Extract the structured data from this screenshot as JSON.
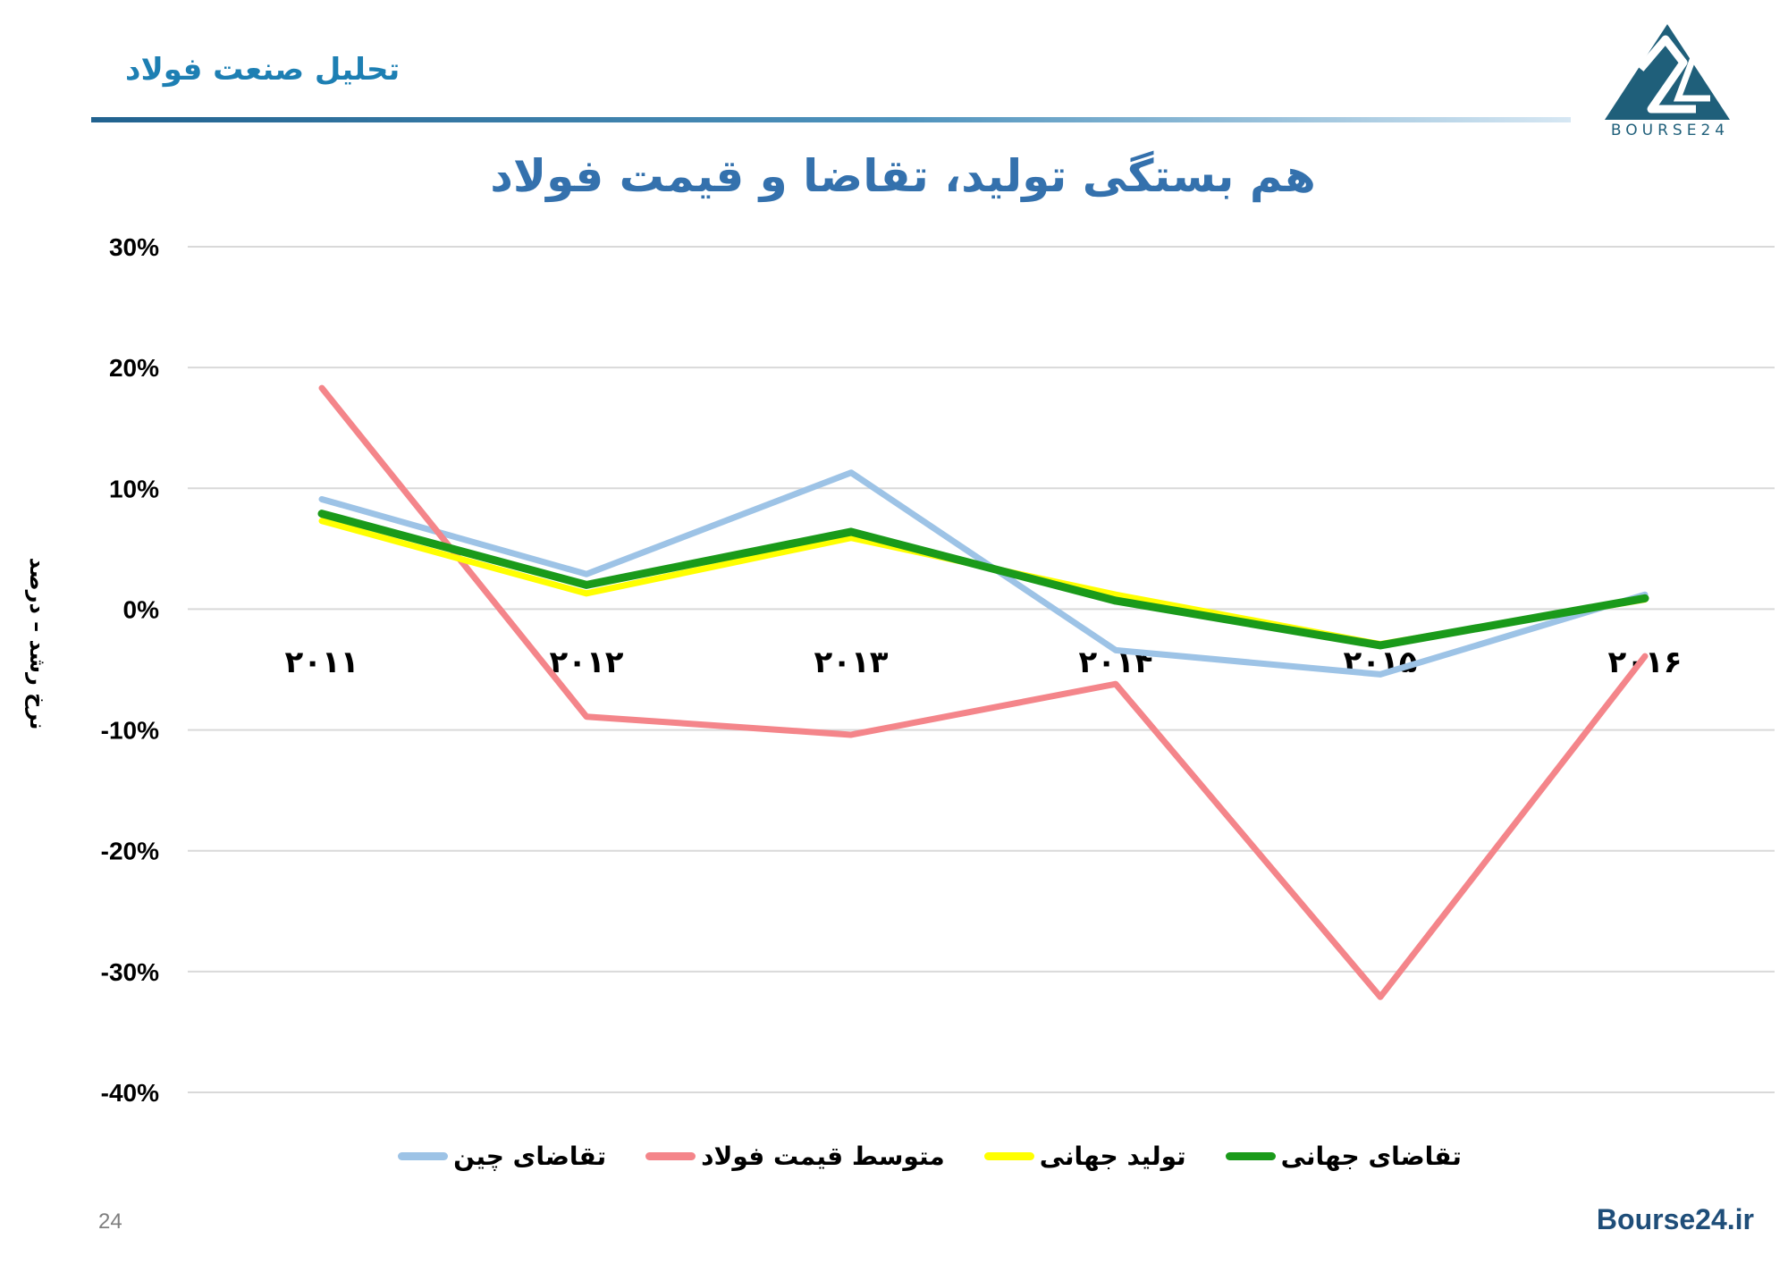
{
  "header": {
    "title": "تحلیل صنعت فولاد",
    "logo_text": "BOURSE24"
  },
  "colors": {
    "header_text": "#1d7fb3",
    "title": "#3471ad",
    "footer_site": "#1f4e79"
  },
  "chart_data": {
    "type": "line",
    "title": "هم بستگی تولید، تقاضا و قیمت فولاد",
    "ylabel": "نرخ رشد – درصد",
    "xlabel": "",
    "categories": [
      "۲۰۱۱",
      "۲۰۱۲",
      "۲۰۱۳",
      "۲۰۱۴",
      "۲۰۱۵",
      "۲۰۱۶"
    ],
    "ylim": [
      -40,
      30
    ],
    "yticks": [
      "30%",
      "20%",
      "10%",
      "0%",
      "-10%",
      "-20%",
      "-30%",
      "-40%"
    ],
    "ytick_values": [
      30,
      20,
      10,
      0,
      -10,
      -20,
      -30,
      -40
    ],
    "grid": true,
    "legend_position": "bottom",
    "series": [
      {
        "name": "تقاضای چین",
        "color": "#9dc3e6",
        "values": [
          9.1,
          2.9,
          11.3,
          -3.4,
          -5.4,
          1.2
        ]
      },
      {
        "name": "متوسط قیمت فولاد",
        "color": "#f4858a",
        "values": [
          18.3,
          -8.9,
          -10.4,
          -6.2,
          -32.1,
          -3.9
        ]
      },
      {
        "name": "تولید جهانی",
        "color": "#ffff00",
        "values": [
          7.3,
          1.3,
          5.9,
          1.2,
          -2.9,
          0.8
        ]
      },
      {
        "name": "تقاضای جهانی",
        "color": "#1a9a1a",
        "values": [
          7.9,
          2.0,
          6.4,
          0.7,
          -3.0,
          0.9
        ]
      }
    ]
  },
  "footer": {
    "page_number": "24",
    "site": "Bourse24.ir"
  }
}
